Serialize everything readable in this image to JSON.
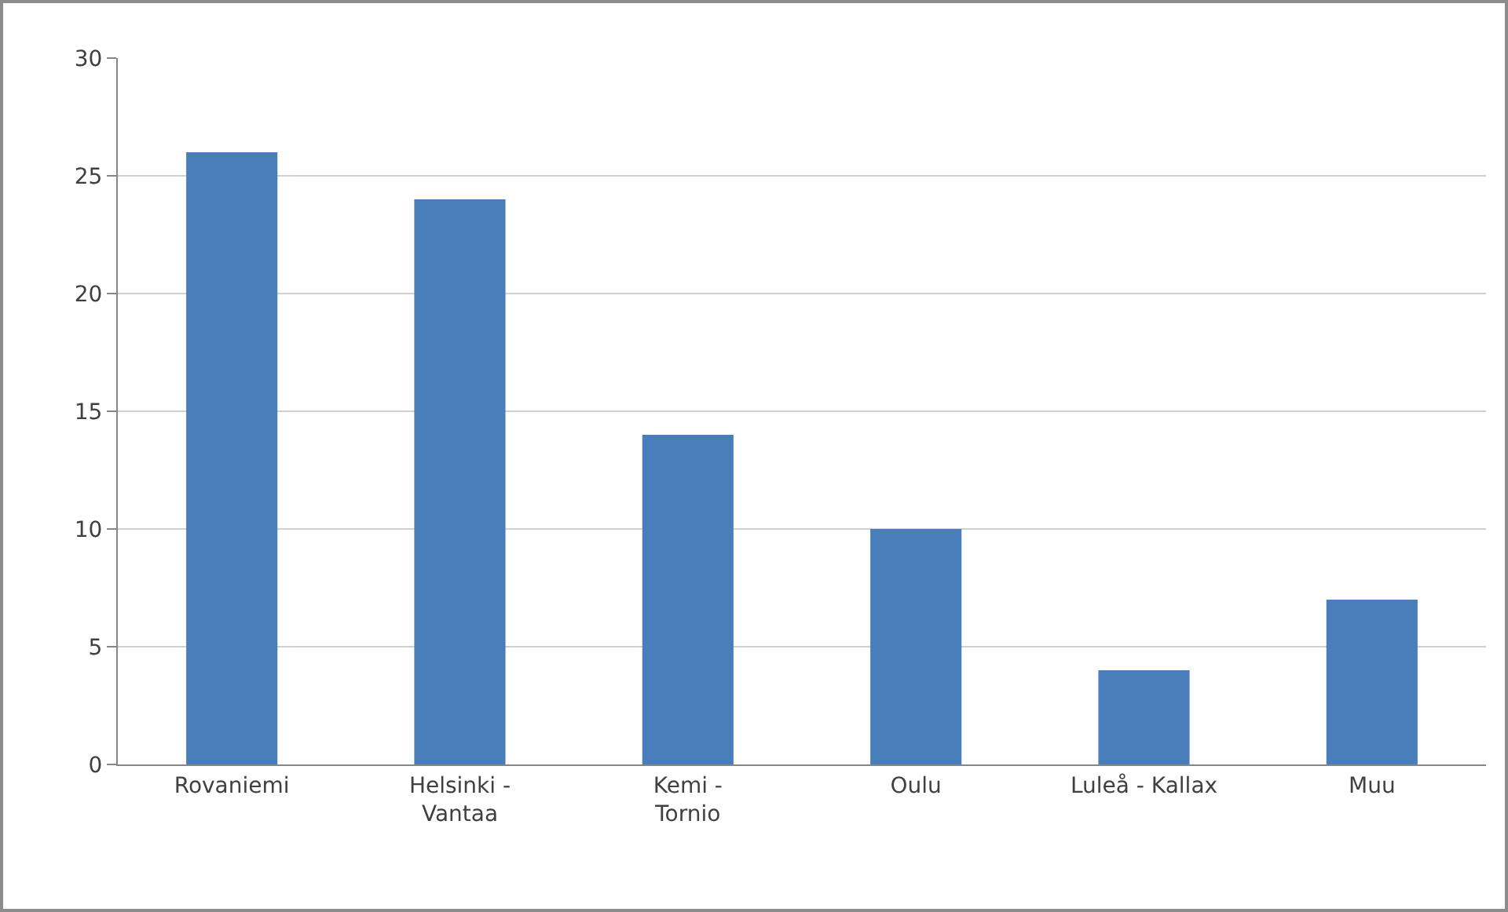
{
  "chart_data": {
    "type": "bar",
    "categories": [
      "Rovaniemi",
      "Helsinki -\nVantaa",
      "Kemi -\nTornio",
      "Oulu",
      "Luleå - Kallax",
      "Muu"
    ],
    "values": [
      26,
      24,
      14,
      10,
      4,
      7
    ],
    "color": "#4a7ebb",
    "ylim": [
      0,
      30
    ],
    "yticks": [
      0,
      5,
      10,
      15,
      20,
      25,
      30
    ],
    "grid": "y",
    "legend": false
  }
}
